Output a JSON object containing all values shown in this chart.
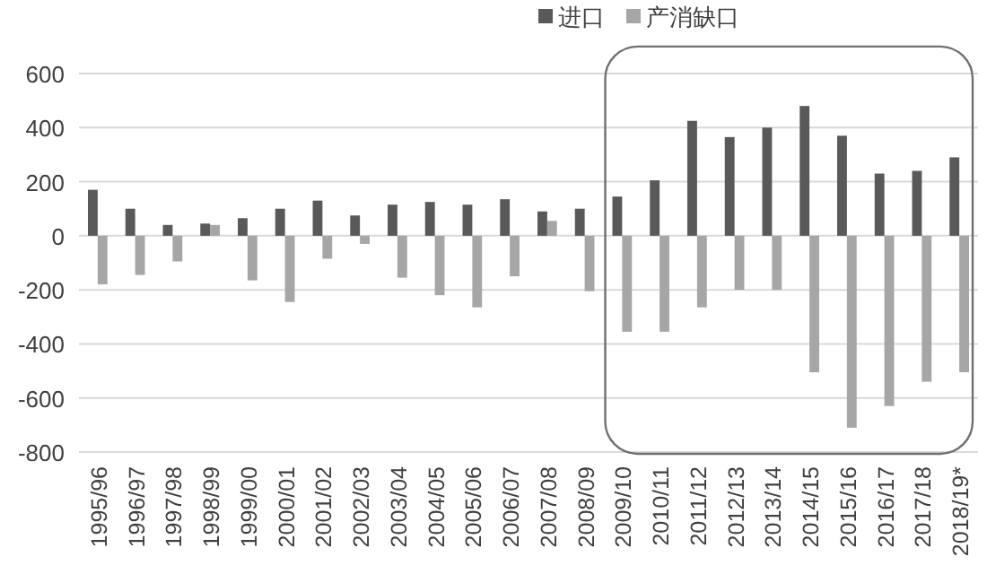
{
  "chart_data": {
    "type": "bar",
    "categories": [
      "1995/96",
      "1996/97",
      "1997/98",
      "1998/99",
      "1999/00",
      "2000/01",
      "2001/02",
      "2002/03",
      "2003/04",
      "2004/05",
      "2005/06",
      "2006/07",
      "2007/08",
      "2008/09",
      "2009/10",
      "2010/11",
      "2011/12",
      "2012/13",
      "2013/14",
      "2014/15",
      "2015/16",
      "2016/17",
      "2017/18",
      "2018/19*"
    ],
    "series": [
      {
        "name": "进口",
        "color": "#595959",
        "values": [
          170,
          100,
          40,
          45,
          65,
          100,
          130,
          75,
          115,
          125,
          115,
          135,
          90,
          100,
          145,
          205,
          425,
          365,
          400,
          480,
          370,
          230,
          240,
          290
        ]
      },
      {
        "name": "产消缺口",
        "color": "#a6a6a6",
        "values": [
          -180,
          -145,
          -95,
          40,
          -165,
          -245,
          -85,
          -30,
          -155,
          -220,
          -265,
          -150,
          55,
          -205,
          -355,
          -355,
          -265,
          -200,
          -200,
          -505,
          -710,
          -630,
          -540,
          -505
        ]
      }
    ],
    "ylim": [
      -800,
      600
    ],
    "yticks": [
      -800,
      -600,
      -400,
      -200,
      0,
      200,
      400,
      600
    ],
    "grid": "y",
    "legend": "top"
  }
}
